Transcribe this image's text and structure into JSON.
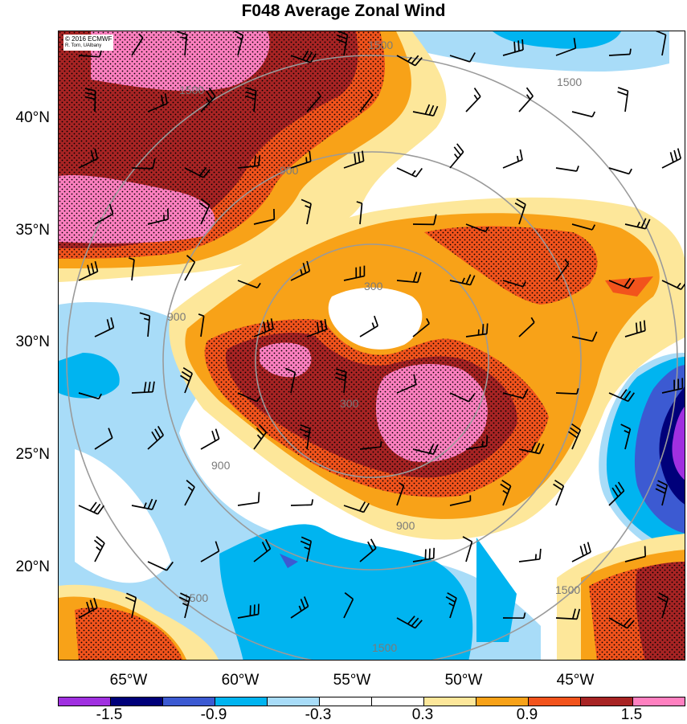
{
  "title": "F048 Average Zonal Wind",
  "credit": {
    "line1": "© 2016 ECMWF",
    "line2": "R. Torn, UAlbany"
  },
  "lat_labels": [
    "40°N",
    "35°N",
    "30°N",
    "25°N",
    "20°N"
  ],
  "lon_labels": [
    "65°W",
    "60°W",
    "55°W",
    "50°W",
    "45°W"
  ],
  "range_ring_labels": [
    "300",
    "900",
    "1500"
  ],
  "colorbar": {
    "colors": [
      "#a030e0",
      "#00007a",
      "#3c5ad2",
      "#00b4f0",
      "#a8dcf8",
      "#ffffff",
      "#ffffff",
      "#fde79a",
      "#f8a218",
      "#f2531c",
      "#a82424",
      "#ff80c0"
    ],
    "labels": [
      "-1.5",
      "-0.9",
      "-0.3",
      "0.3",
      "0.9",
      "1.5"
    ]
  }
}
